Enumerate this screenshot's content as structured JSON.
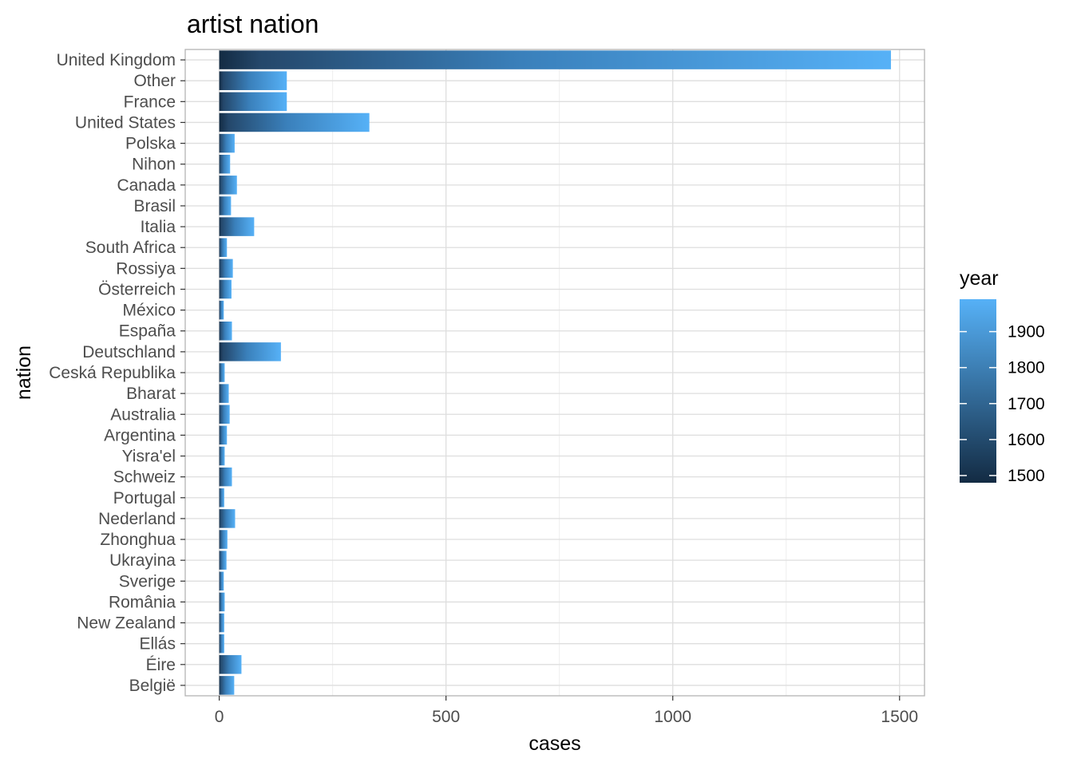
{
  "chart_data": {
    "type": "bar",
    "orientation": "horizontal",
    "title": "artist nation",
    "xlabel": "cases",
    "ylabel": "nation",
    "xlim": [
      -75,
      1555
    ],
    "x_ticks": [
      0,
      500,
      1000,
      1500
    ],
    "x_tick_labels": [
      "0",
      "500",
      "1000",
      "1500"
    ],
    "grid": true,
    "categories": [
      "United Kingdom",
      "Other",
      "France",
      "United States",
      "Polska",
      "Nihon",
      "Canada",
      "Brasil",
      "Italia",
      "South Africa",
      "Rossiya",
      "Österreich",
      "México",
      "España",
      "Deutschland",
      "Ceská Republika",
      "Bharat",
      "Australia",
      "Argentina",
      "Yisra'el",
      "Schweiz",
      "Portugal",
      "Nederland",
      "Zhonghua",
      "Ukrayina",
      "Sverige",
      "România",
      "New Zealand",
      "Ellás",
      "Éire",
      "België"
    ],
    "values": [
      1481,
      149,
      149,
      331,
      34,
      24,
      39,
      26,
      77,
      17,
      30,
      27,
      10,
      28,
      136,
      12,
      21,
      23,
      17,
      12,
      28,
      11,
      35,
      18,
      16,
      10,
      12,
      11,
      11,
      49,
      33
    ],
    "legend": {
      "title": "year",
      "type": "colorbar",
      "position": "right",
      "ticks": [
        1500,
        1600,
        1700,
        1800,
        1900
      ],
      "range": [
        1480,
        1990
      ],
      "color_low": "#132B43",
      "color_high": "#56B1F7"
    },
    "colors": {
      "panel_border": "#b3b3b3",
      "grid_major": "#dedede",
      "grid_minor": "#eeeeee"
    }
  }
}
